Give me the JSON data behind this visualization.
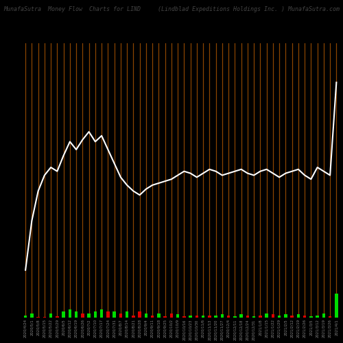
{
  "title_left": "MunafaSutra  Money Flow  Charts for LIND",
  "title_right": "(Lindblad Expeditions Holdings Inc. ) MunafaSutra.com",
  "background_color": "#000000",
  "line_color": "#ffffff",
  "vline_color": "#8B4500",
  "bar_green": "#00dd00",
  "bar_red": "#dd0000",
  "dates": [
    "2020/4/24",
    "2020/5/1",
    "2020/5/8",
    "2020/5/15",
    "2020/5/22",
    "2020/5/29",
    "2020/6/5",
    "2020/6/12",
    "2020/6/19",
    "2020/6/26",
    "2020/7/2",
    "2020/7/10",
    "2020/7/17",
    "2020/7/24",
    "2020/7/31",
    "2020/8/7",
    "2020/8/14",
    "2020/8/21",
    "2020/8/28",
    "2020/9/4",
    "2020/9/11",
    "2020/9/18",
    "2020/9/25",
    "2020/10/2",
    "2020/10/9",
    "2020/10/16",
    "2020/10/23",
    "2020/10/30",
    "2020/11/6",
    "2020/11/13",
    "2020/11/20",
    "2020/11/27",
    "2020/12/4",
    "2020/12/11",
    "2020/12/18",
    "2020/12/24",
    "2020/12/31",
    "2021/1/8",
    "2021/1/15",
    "2021/1/22",
    "2021/1/29",
    "2021/2/5",
    "2021/2/12",
    "2021/2/19",
    "2021/2/26",
    "2021/3/5",
    "2021/3/12",
    "2021/3/19",
    "2021/3/26",
    "2021/4/1"
  ],
  "line_values": [
    1.0,
    3.5,
    5.0,
    5.8,
    6.2,
    6.0,
    6.8,
    7.5,
    7.1,
    7.6,
    8.0,
    7.5,
    7.8,
    7.1,
    6.4,
    5.7,
    5.3,
    5.0,
    4.8,
    5.1,
    5.3,
    5.4,
    5.5,
    5.6,
    5.8,
    6.0,
    5.9,
    5.7,
    5.9,
    6.1,
    6.0,
    5.8,
    5.9,
    6.0,
    6.1,
    5.9,
    5.8,
    6.0,
    6.1,
    5.9,
    5.7,
    5.9,
    6.0,
    6.1,
    5.8,
    5.6,
    6.2,
    6.0,
    5.8,
    10.5
  ],
  "bar_values": [
    1,
    2,
    -0.3,
    -0.1,
    2,
    -0.5,
    3,
    4,
    3,
    -2,
    2,
    3,
    4,
    -3,
    3,
    -2,
    3,
    -1,
    -3,
    2,
    -1,
    2,
    -0.5,
    -2,
    1.5,
    -0.5,
    0.8,
    -1,
    1,
    -1,
    0.8,
    1.5,
    -1,
    0.5,
    1.5,
    -0.8,
    0.5,
    -1,
    2,
    -1.5,
    0.8,
    1.5,
    -1,
    1.5,
    -0.8,
    0.5,
    1,
    2,
    -0.5,
    12
  ],
  "bar_signs": [
    1,
    1,
    -1,
    -1,
    1,
    -1,
    1,
    1,
    1,
    -1,
    1,
    1,
    1,
    -1,
    1,
    -1,
    1,
    -1,
    -1,
    1,
    -1,
    1,
    -1,
    -1,
    1,
    -1,
    1,
    -1,
    1,
    -1,
    1,
    1,
    -1,
    1,
    1,
    -1,
    1,
    -1,
    1,
    -1,
    1,
    1,
    -1,
    1,
    -1,
    1,
    1,
    1,
    -1,
    1
  ]
}
